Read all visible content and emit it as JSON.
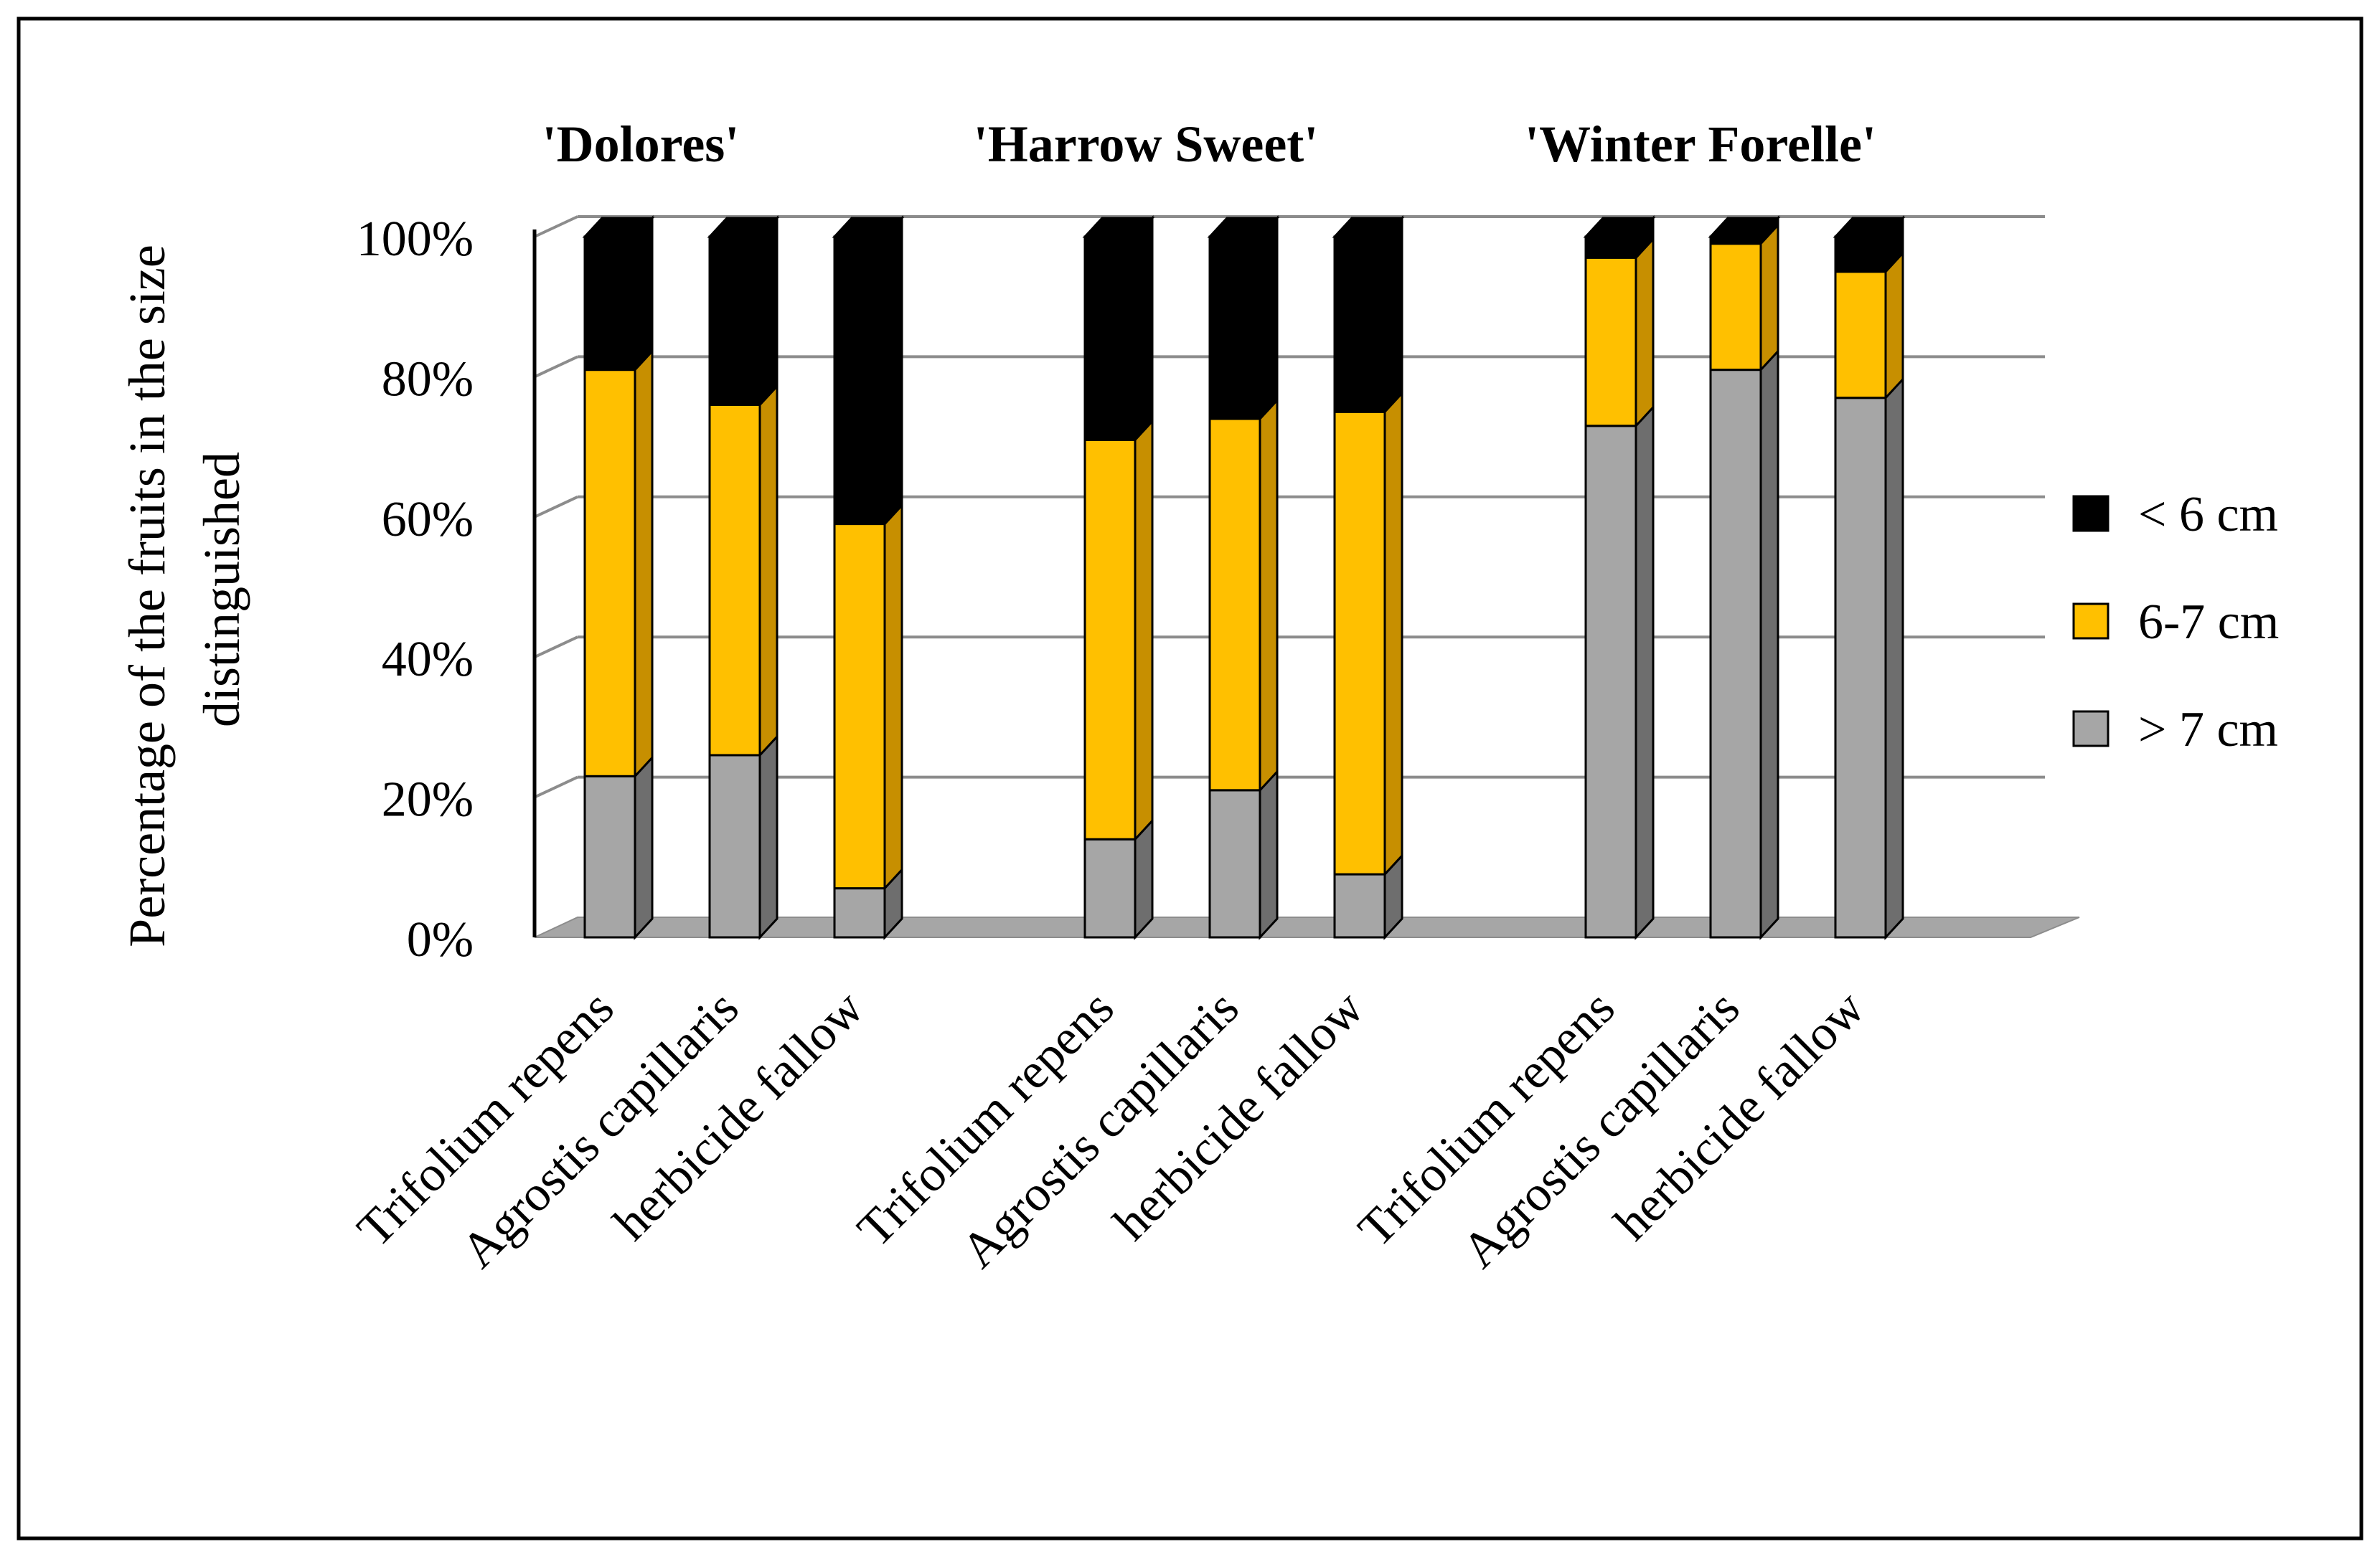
{
  "chart_data": {
    "type": "bar",
    "stacked": true,
    "ylabel": "Percentage of the fruits in the size distinguished",
    "ylabel_lines": [
      "Percentage of the fruits in the size",
      "distinguished"
    ],
    "ylim": [
      0,
      100
    ],
    "y_ticks": [
      "0%",
      "20%",
      "40%",
      "60%",
      "80%",
      "100%"
    ],
    "y_tick_values": [
      0,
      20,
      40,
      60,
      80,
      100
    ],
    "legend_position": "right",
    "series": [
      {
        "name": "> 7 cm",
        "color": "#a6a6a6",
        "side_color": "#6e6e6e"
      },
      {
        "name": "6-7 cm",
        "color": "#ffc000",
        "side_color": "#c78f00"
      },
      {
        "name": "< 6 cm",
        "color": "#000000",
        "side_color": "#000000"
      }
    ],
    "legend_order": [
      "< 6 cm",
      "6-7 cm",
      "> 7 cm"
    ],
    "groups": [
      {
        "title": "'Dolores'",
        "bars": [
          {
            "category": "Trifolium repens",
            "values": [
              23,
              58,
              19
            ]
          },
          {
            "category": "Agrostis capillaris",
            "values": [
              26,
              50,
              24
            ]
          },
          {
            "category": "herbicide fallow",
            "values": [
              7,
              52,
              41
            ]
          }
        ]
      },
      {
        "title": "'Harrow Sweet'",
        "bars": [
          {
            "category": "Trifolium repens",
            "values": [
              14,
              57,
              29
            ]
          },
          {
            "category": "Agrostis capillaris",
            "values": [
              21,
              53,
              26
            ]
          },
          {
            "category": "herbicide fallow",
            "values": [
              9,
              66,
              25
            ]
          }
        ]
      },
      {
        "title": "'Winter Forelle'",
        "bars": [
          {
            "category": "Trifolium repens",
            "values": [
              73,
              24,
              3
            ]
          },
          {
            "category": "Agrostis capillaris",
            "values": [
              81,
              18,
              1
            ]
          },
          {
            "category": "herbicide fallow",
            "values": [
              77,
              18,
              5
            ]
          }
        ]
      }
    ]
  }
}
